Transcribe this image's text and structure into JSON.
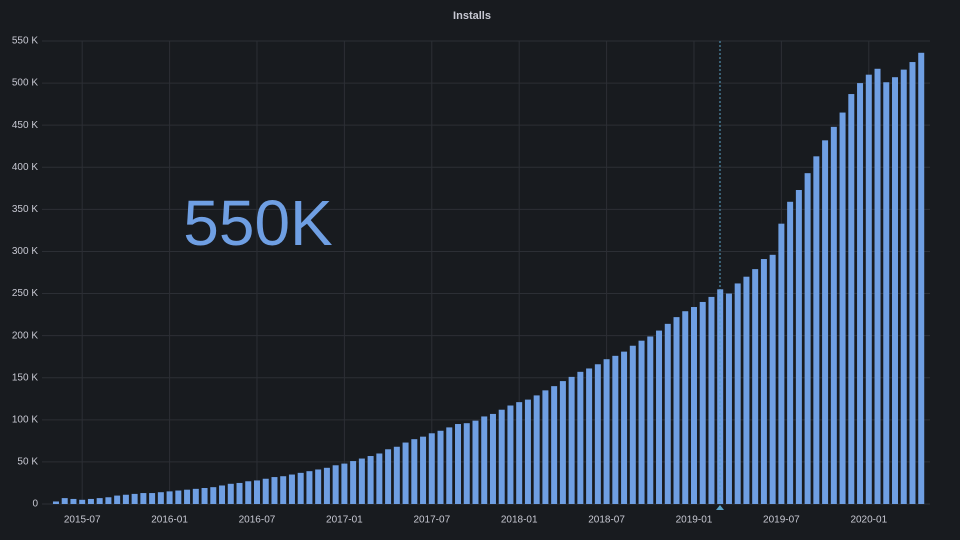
{
  "chart_data": {
    "type": "bar",
    "title": "Installs",
    "annotation": "550K",
    "categories": [
      null,
      null,
      null,
      "2015-07",
      null,
      null,
      null,
      null,
      null,
      null,
      null,
      null,
      null,
      "2016-01",
      null,
      null,
      null,
      null,
      null,
      null,
      null,
      null,
      null,
      "2016-07",
      null,
      null,
      null,
      null,
      null,
      null,
      null,
      null,
      null,
      "2017-01",
      null,
      null,
      null,
      null,
      null,
      null,
      null,
      null,
      null,
      "2017-07",
      null,
      null,
      null,
      null,
      null,
      null,
      null,
      null,
      null,
      "2018-01",
      null,
      null,
      null,
      null,
      null,
      null,
      null,
      null,
      null,
      "2018-07",
      null,
      null,
      null,
      null,
      null,
      null,
      null,
      null,
      null,
      "2019-01",
      null,
      null,
      null,
      null,
      null,
      null,
      null,
      null,
      null,
      "2019-07",
      null,
      null,
      null,
      null,
      null,
      null,
      null,
      null,
      null,
      "2020-01",
      null,
      null,
      null,
      null,
      null,
      null
    ],
    "values": [
      3000,
      7000,
      6000,
      5000,
      6000,
      7000,
      8000,
      10000,
      11000,
      12000,
      13000,
      13000,
      14000,
      15000,
      16000,
      17000,
      18000,
      19000,
      20000,
      22000,
      24000,
      25000,
      27000,
      28000,
      30000,
      32000,
      33000,
      35000,
      37000,
      39000,
      41000,
      43000,
      46000,
      48000,
      51000,
      54000,
      57000,
      60000,
      65000,
      68000,
      73000,
      77000,
      80000,
      84000,
      87000,
      91000,
      95000,
      96000,
      99000,
      104000,
      107000,
      112000,
      117000,
      121000,
      124000,
      129000,
      135000,
      140000,
      146000,
      151000,
      157000,
      161000,
      166000,
      172000,
      176000,
      181000,
      188000,
      194000,
      199000,
      206000,
      214000,
      222000,
      229000,
      234000,
      240000,
      246000,
      255000,
      250000,
      262000,
      270000,
      279000,
      291000,
      296000,
      333000,
      359000,
      373000,
      393000,
      413000,
      432000,
      448000,
      465000,
      487000,
      500000,
      510000,
      517000,
      501000,
      507000,
      516000,
      525000,
      536000
    ],
    "color": "#6f9fe3",
    "ylim": [
      0,
      550000
    ],
    "yticks": [
      0,
      {
        "value": 50000,
        "label": "50 K"
      },
      {
        "value": 100000,
        "label": "100 K"
      },
      {
        "value": 150000,
        "label": "150 K"
      },
      {
        "value": 200000,
        "label": "200 K"
      },
      {
        "value": 250000,
        "label": "250 K"
      },
      {
        "value": 300000,
        "label": "300 K"
      },
      {
        "value": 350000,
        "label": "350 K"
      },
      {
        "value": 400000,
        "label": "400 K"
      },
      {
        "value": 450000,
        "label": "450 K"
      },
      {
        "value": 500000,
        "label": "500 K"
      },
      {
        "value": 550000,
        "label": "550 K"
      }
    ],
    "grid": true
  }
}
